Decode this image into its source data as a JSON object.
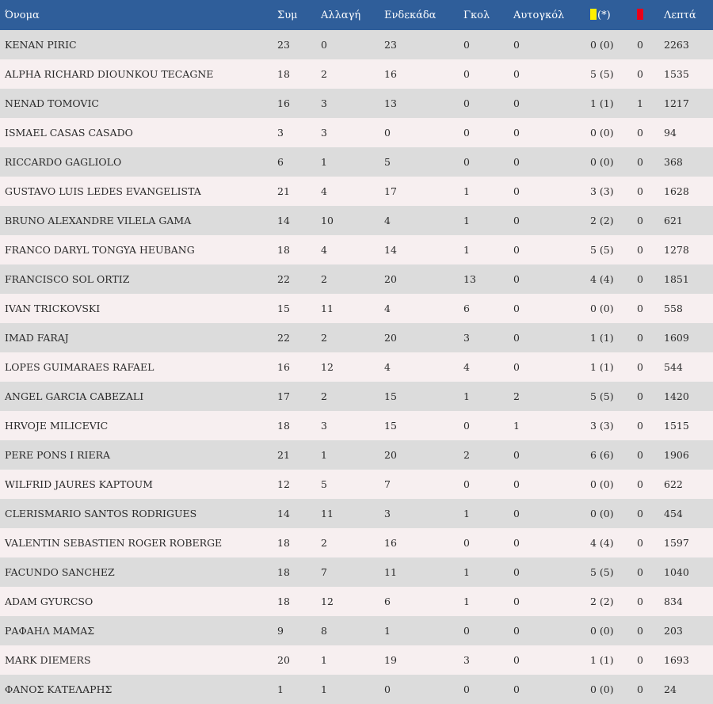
{
  "headers": {
    "name": "Όνομα",
    "apps": "Συμ",
    "sub": "Αλλαγή",
    "start": "Ενδεκάδα",
    "goals": "Γκολ",
    "own_goals": "Αυτογκόλ",
    "yellow_suffix": "(*)",
    "minutes": "Λεπτά"
  },
  "colors": {
    "header_bg": "#2f5e9a",
    "yellow_card": "#ffef00",
    "red_card": "#e8001a",
    "row_odd": "#dcdcdc",
    "row_even": "#f7eff0"
  },
  "icons": {
    "yellow": "yellow-card-icon",
    "red": "red-card-icon"
  },
  "rows": [
    {
      "name": "KENAN PIRIC",
      "apps": "23",
      "sub": "0",
      "start": "23",
      "goals": "0",
      "own_goals": "0",
      "yellow": "0 (0)",
      "red": "0",
      "minutes": "2263"
    },
    {
      "name": "ALPHA RICHARD DIOUNKOU TECAGNE",
      "apps": "18",
      "sub": "2",
      "start": "16",
      "goals": "0",
      "own_goals": "0",
      "yellow": "5 (5)",
      "red": "0",
      "minutes": "1535"
    },
    {
      "name": "NENAD TOMOVIC",
      "apps": "16",
      "sub": "3",
      "start": "13",
      "goals": "0",
      "own_goals": "0",
      "yellow": "1 (1)",
      "red": "1",
      "minutes": "1217"
    },
    {
      "name": "ISMAEL CASAS CASADO",
      "apps": "3",
      "sub": "3",
      "start": "0",
      "goals": "0",
      "own_goals": "0",
      "yellow": "0 (0)",
      "red": "0",
      "minutes": "94"
    },
    {
      "name": "RICCARDO GAGLIOLO",
      "apps": "6",
      "sub": "1",
      "start": "5",
      "goals": "0",
      "own_goals": "0",
      "yellow": "0 (0)",
      "red": "0",
      "minutes": "368"
    },
    {
      "name": "GUSTAVO LUIS LEDES EVANGELISTA",
      "apps": "21",
      "sub": "4",
      "start": "17",
      "goals": "1",
      "own_goals": "0",
      "yellow": "3 (3)",
      "red": "0",
      "minutes": "1628"
    },
    {
      "name": "BRUNO ALEXANDRE VILELA GAMA",
      "apps": "14",
      "sub": "10",
      "start": "4",
      "goals": "1",
      "own_goals": "0",
      "yellow": "2 (2)",
      "red": "0",
      "minutes": "621"
    },
    {
      "name": "FRANCO DARYL TONGYA HEUBANG",
      "apps": "18",
      "sub": "4",
      "start": "14",
      "goals": "1",
      "own_goals": "0",
      "yellow": "5 (5)",
      "red": "0",
      "minutes": "1278"
    },
    {
      "name": "FRANCISCO SOL ORTIZ",
      "apps": "22",
      "sub": "2",
      "start": "20",
      "goals": "13",
      "own_goals": "0",
      "yellow": "4 (4)",
      "red": "0",
      "minutes": "1851"
    },
    {
      "name": "IVAN TRICKOVSKI",
      "apps": "15",
      "sub": "11",
      "start": "4",
      "goals": "6",
      "own_goals": "0",
      "yellow": "0 (0)",
      "red": "0",
      "minutes": "558"
    },
    {
      "name": "IMAD FARAJ",
      "apps": "22",
      "sub": "2",
      "start": "20",
      "goals": "3",
      "own_goals": "0",
      "yellow": "1 (1)",
      "red": "0",
      "minutes": "1609"
    },
    {
      "name": "LOPES GUIMARAES RAFAEL",
      "apps": "16",
      "sub": "12",
      "start": "4",
      "goals": "4",
      "own_goals": "0",
      "yellow": "1 (1)",
      "red": "0",
      "minutes": "544"
    },
    {
      "name": "ANGEL GARCIA CABEZALI",
      "apps": "17",
      "sub": "2",
      "start": "15",
      "goals": "1",
      "own_goals": "2",
      "yellow": "5 (5)",
      "red": "0",
      "minutes": "1420"
    },
    {
      "name": "HRVOJE MILICEVIC",
      "apps": "18",
      "sub": "3",
      "start": "15",
      "goals": "0",
      "own_goals": "1",
      "yellow": "3 (3)",
      "red": "0",
      "minutes": "1515"
    },
    {
      "name": "PERE PONS I RIERA",
      "apps": "21",
      "sub": "1",
      "start": "20",
      "goals": "2",
      "own_goals": "0",
      "yellow": "6 (6)",
      "red": "0",
      "minutes": "1906"
    },
    {
      "name": "WILFRID JAURES KAPTOUM",
      "apps": "12",
      "sub": "5",
      "start": "7",
      "goals": "0",
      "own_goals": "0",
      "yellow": "0 (0)",
      "red": "0",
      "minutes": "622"
    },
    {
      "name": "CLERISMARIO SANTOS RODRIGUES",
      "apps": "14",
      "sub": "11",
      "start": "3",
      "goals": "1",
      "own_goals": "0",
      "yellow": "0 (0)",
      "red": "0",
      "minutes": "454"
    },
    {
      "name": "VALENTIN SEBASTIEN ROGER ROBERGE",
      "apps": "18",
      "sub": "2",
      "start": "16",
      "goals": "0",
      "own_goals": "0",
      "yellow": "4 (4)",
      "red": "0",
      "minutes": "1597"
    },
    {
      "name": "FACUNDO SANCHEZ",
      "apps": "18",
      "sub": "7",
      "start": "11",
      "goals": "1",
      "own_goals": "0",
      "yellow": "5 (5)",
      "red": "0",
      "minutes": "1040"
    },
    {
      "name": "ADAM GYURCSO",
      "apps": "18",
      "sub": "12",
      "start": "6",
      "goals": "1",
      "own_goals": "0",
      "yellow": "2 (2)",
      "red": "0",
      "minutes": "834"
    },
    {
      "name": "ΡΑΦΑΗΛ ΜΑΜΑΣ",
      "apps": "9",
      "sub": "8",
      "start": "1",
      "goals": "0",
      "own_goals": "0",
      "yellow": "0 (0)",
      "red": "0",
      "minutes": "203"
    },
    {
      "name": "MARK DIEMERS",
      "apps": "20",
      "sub": "1",
      "start": "19",
      "goals": "3",
      "own_goals": "0",
      "yellow": "1 (1)",
      "red": "0",
      "minutes": "1693"
    },
    {
      "name": "ΦΑΝΟΣ ΚΑΤΕΛΑΡΗΣ",
      "apps": "1",
      "sub": "1",
      "start": "0",
      "goals": "0",
      "own_goals": "0",
      "yellow": "0 (0)",
      "red": "0",
      "minutes": "24"
    }
  ]
}
